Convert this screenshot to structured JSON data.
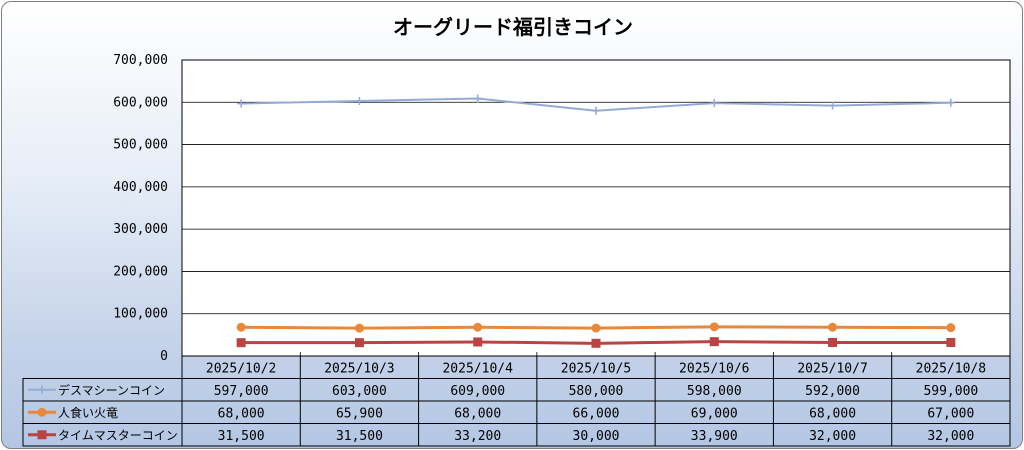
{
  "chart_data": {
    "type": "line",
    "title": "オーグリード福引きコイン",
    "categories": [
      "2025/10/2",
      "2025/10/3",
      "2025/10/4",
      "2025/10/5",
      "2025/10/6",
      "2025/10/7",
      "2025/10/8"
    ],
    "ylim": [
      0,
      700000
    ],
    "yticks": [
      "0",
      "100,000",
      "200,000",
      "300,000",
      "400,000",
      "500,000",
      "600,000",
      "700,000"
    ],
    "ytick_values": [
      0,
      100000,
      200000,
      300000,
      400000,
      500000,
      600000,
      700000
    ],
    "grid": true,
    "legend": "data-table",
    "series": [
      {
        "name": "デスマシーンコイン",
        "values": [
          597000,
          603000,
          609000,
          580000,
          598000,
          592000,
          599000
        ],
        "labels": [
          "597,000",
          "603,000",
          "609,000",
          "580,000",
          "598,000",
          "592,000",
          "599,000"
        ],
        "color": "#95abd6",
        "marker": "cross"
      },
      {
        "name": "人食い火竜",
        "values": [
          68000,
          65900,
          68000,
          66000,
          69000,
          68000,
          67000
        ],
        "labels": [
          "68,000",
          "65,900",
          "68,000",
          "66,000",
          "69,000",
          "68,000",
          "67,000"
        ],
        "color": "#e8883a",
        "marker": "circle"
      },
      {
        "name": "タイムマスターコイン",
        "values": [
          31500,
          31500,
          33200,
          30000,
          33900,
          32000,
          32000
        ],
        "labels": [
          "31,500",
          "31,500",
          "33,200",
          "30,000",
          "33,900",
          "32,000",
          "32,000"
        ],
        "color": "#b84444",
        "marker": "square"
      }
    ]
  }
}
